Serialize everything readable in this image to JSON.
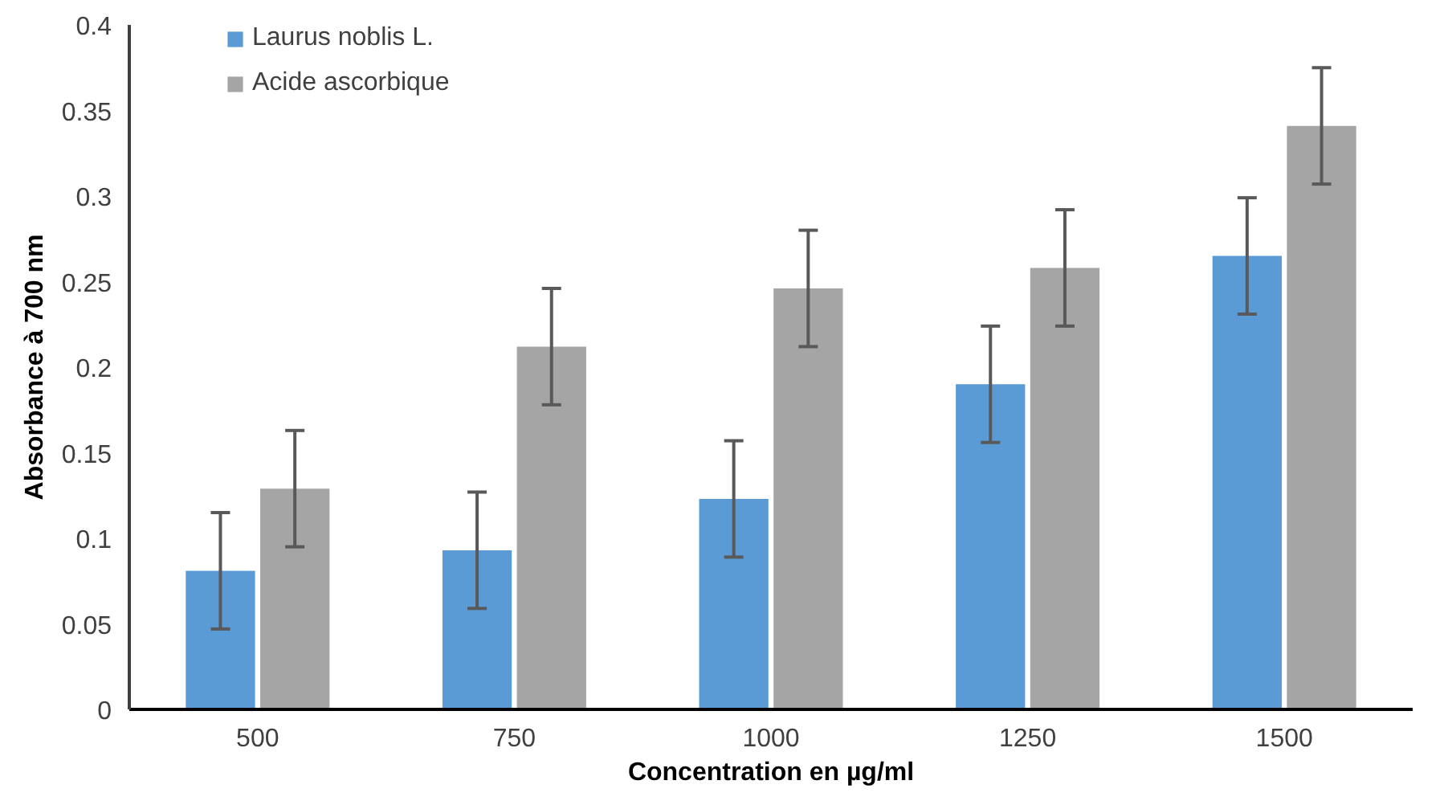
{
  "chart_data": {
    "type": "bar",
    "xlabel": "Concentration en µg/ml",
    "ylabel": "Absorbance à 700 nm",
    "categories": [
      "500",
      "750",
      "1000",
      "1250",
      "1500"
    ],
    "series": [
      {
        "name": "Laurus noblis L.",
        "color": "#5b9bd5",
        "values": [
          0.081,
          0.093,
          0.123,
          0.19,
          0.265
        ],
        "errors": [
          0.034,
          0.034,
          0.034,
          0.034,
          0.034
        ]
      },
      {
        "name": "Acide ascorbique",
        "color": "#a5a5a5",
        "values": [
          0.129,
          0.212,
          0.246,
          0.258,
          0.341
        ],
        "errors": [
          0.034,
          0.034,
          0.034,
          0.034,
          0.034
        ]
      }
    ],
    "ylim": [
      0,
      0.4
    ],
    "yticks": [
      0,
      0.05,
      0.1,
      0.15,
      0.2,
      0.25,
      0.3,
      0.35,
      0.4
    ],
    "grid": false,
    "legend": "top left"
  }
}
